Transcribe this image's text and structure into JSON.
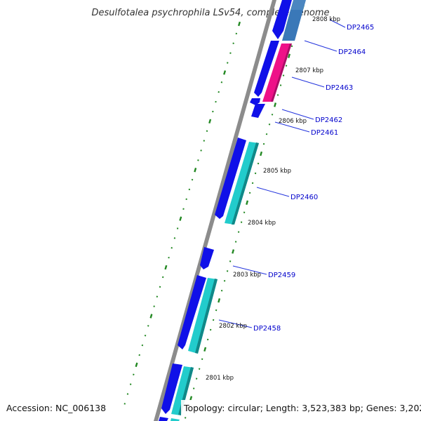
{
  "title": "Desulfotalea psychrophila LSv54, complete genome",
  "accession_text": "Accession: NC_006138",
  "summary_text": "Topology: circular; Length: 3,523,383 bp; Genes: 3,202",
  "colors": {
    "backbone": "#8c8c8c",
    "gene_forward": "#1010e8",
    "gene_cyan": "#22cccc",
    "gene_magenta": "#ee1188",
    "gene_steel": "#4b86c0",
    "tick": "#228822",
    "label": "#0000cc"
  },
  "position_labels": [
    "2808 kbp",
    "2807 kbp",
    "2806 kbp",
    "2805 kbp",
    "2804 kbp",
    "2803 kbp",
    "2802 kbp",
    "2801 kbp"
  ],
  "gene_labels": [
    "DP2465",
    "DP2464",
    "DP2463",
    "DP2462",
    "DP2461",
    "DP2460",
    "DP2459",
    "DP2458"
  ]
}
